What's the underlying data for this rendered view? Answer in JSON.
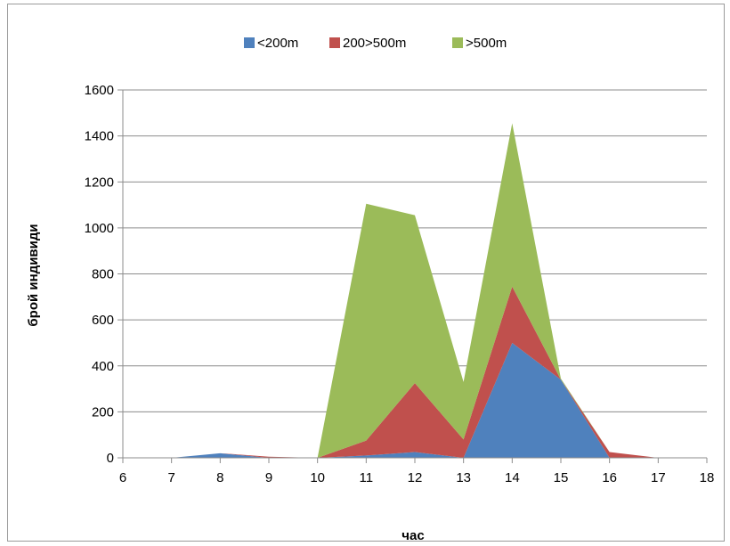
{
  "chart_data": {
    "type": "area",
    "stacked": true,
    "title": "",
    "xlabel": "час",
    "ylabel": "брой индивиди",
    "xlim": [
      6,
      18
    ],
    "ylim": [
      0,
      1600
    ],
    "x_ticks": [
      6,
      7,
      8,
      9,
      10,
      11,
      12,
      13,
      14,
      15,
      16,
      17,
      18
    ],
    "y_ticks": [
      0,
      200,
      400,
      600,
      800,
      1000,
      1200,
      1400,
      1600
    ],
    "grid": "horizontal",
    "legend_position": "top",
    "x": [
      7,
      8,
      9,
      10,
      11,
      12,
      13,
      14,
      15,
      16,
      17
    ],
    "series": [
      {
        "name": "<200m",
        "color": "#4f81bd",
        "values": [
          0,
          20,
          0,
          0,
          10,
          25,
          0,
          500,
          340,
          0,
          0
        ]
      },
      {
        "name": "200>500m",
        "color": "#c0504d",
        "values": [
          0,
          0,
          5,
          0,
          65,
          300,
          80,
          245,
          0,
          25,
          0
        ]
      },
      {
        "name": ">500m",
        "color": "#9bbb59",
        "values": [
          0,
          0,
          0,
          0,
          1030,
          730,
          250,
          710,
          5,
          0,
          0
        ]
      }
    ]
  }
}
